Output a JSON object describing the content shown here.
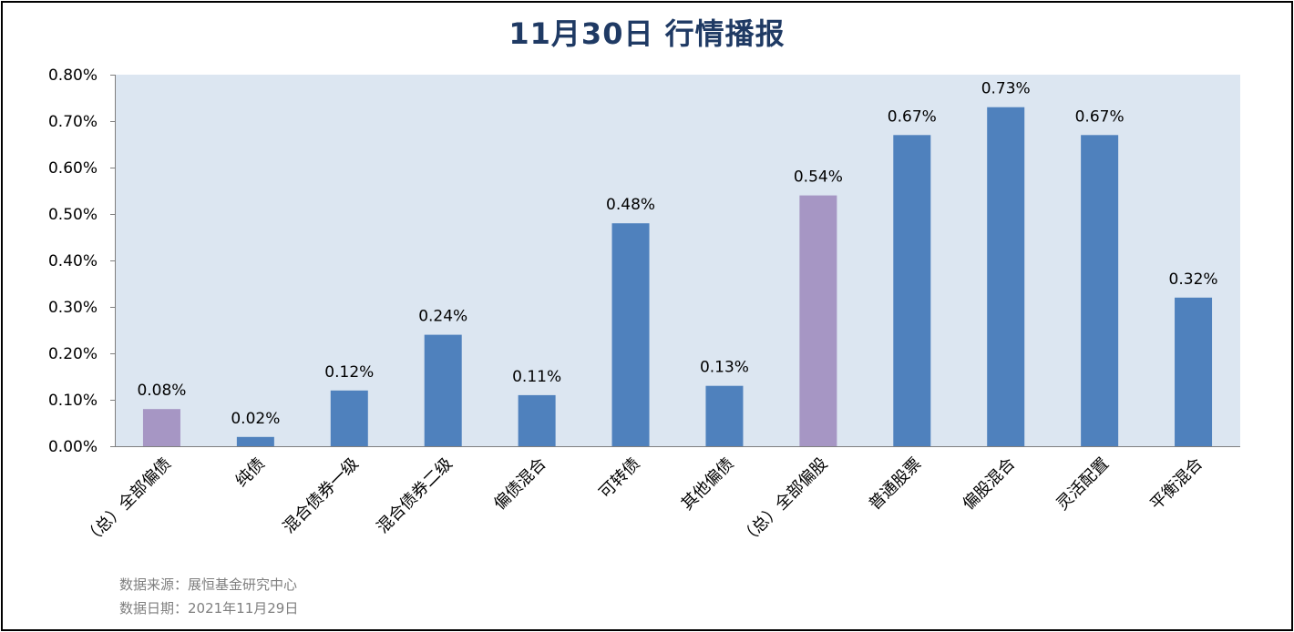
{
  "title": "11月30日  行情播报",
  "chart_data": {
    "type": "bar",
    "categories": [
      "（总）全部偏债",
      "纯债",
      "混合债券一级",
      "混合债券二级",
      "偏债混合",
      "可转债",
      "其他偏债",
      "（总）全部偏股",
      "普通股票",
      "偏股混合",
      "灵活配置",
      "平衡混合"
    ],
    "values": [
      0.08,
      0.02,
      0.12,
      0.24,
      0.11,
      0.48,
      0.13,
      0.54,
      0.67,
      0.73,
      0.67,
      0.32
    ],
    "data_labels": [
      "0.08%",
      "0.02%",
      "0.12%",
      "0.24%",
      "0.11%",
      "0.48%",
      "0.13%",
      "0.54%",
      "0.67%",
      "0.73%",
      "0.67%",
      "0.32%"
    ],
    "ylim": [
      0,
      0.8
    ],
    "yticks": [
      0,
      0.1,
      0.2,
      0.3,
      0.4,
      0.5,
      0.6,
      0.7,
      0.8
    ],
    "ytick_labels": [
      "0.00%",
      "0.10%",
      "0.20%",
      "0.30%",
      "0.40%",
      "0.50%",
      "0.60%",
      "0.70%",
      "0.80%"
    ],
    "unit": "%",
    "grid": false,
    "legend": "none",
    "bar_colors": [
      "#a696c4",
      "#4f81bd",
      "#4f81bd",
      "#4f81bd",
      "#4f81bd",
      "#4f81bd",
      "#4f81bd",
      "#a696c4",
      "#4f81bd",
      "#4f81bd",
      "#4f81bd",
      "#4f81bd"
    ],
    "plot_background": "#dce6f1"
  },
  "footnotes": {
    "source": "数据来源：展恒基金研究中心",
    "date": "数据日期：2021年11月29日"
  }
}
